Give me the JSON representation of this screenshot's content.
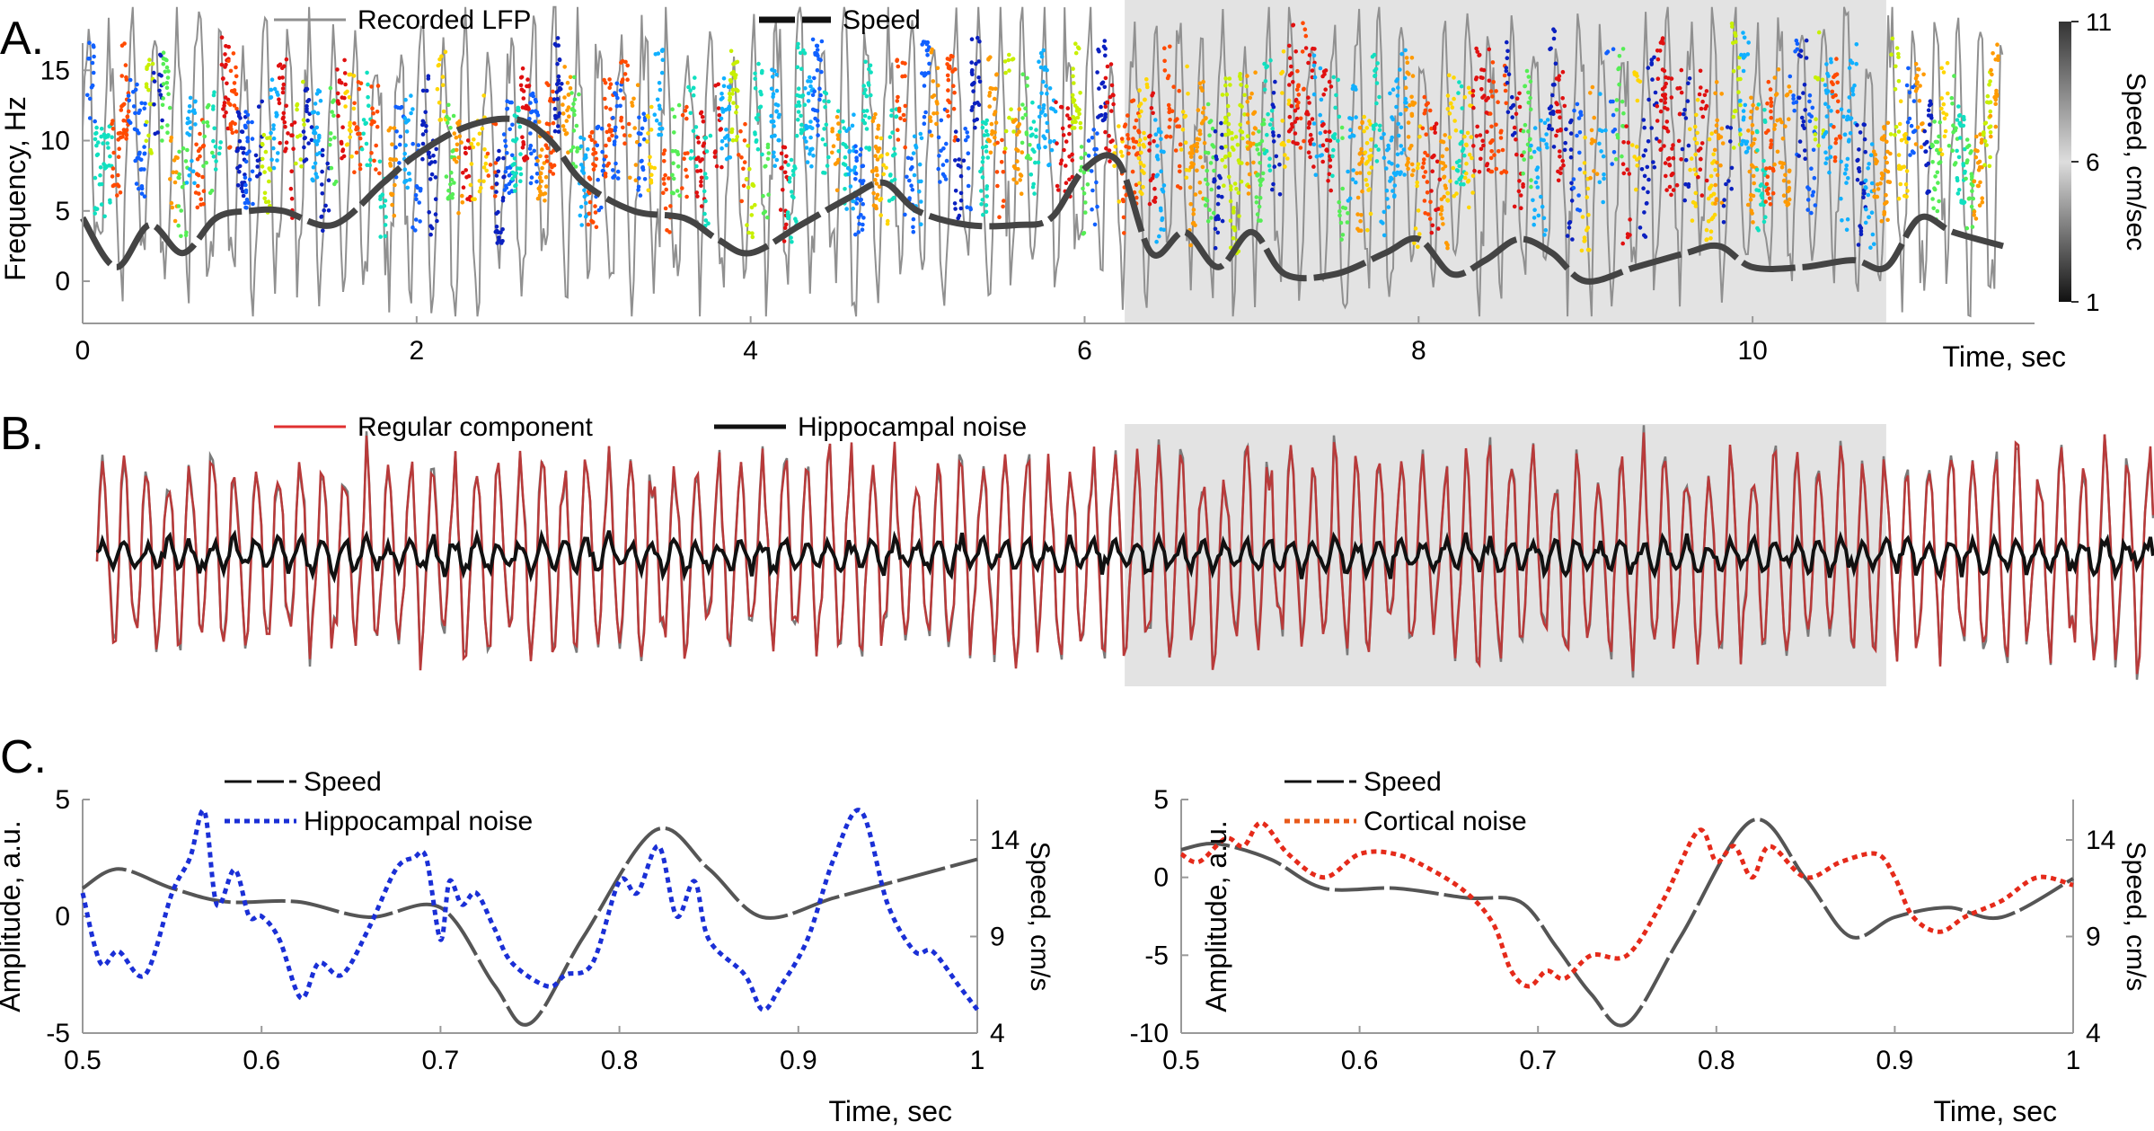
{
  "panel_labels": {
    "a": "A.",
    "b": "B.",
    "c": "C."
  },
  "chart_data": [
    {
      "panel": "A",
      "type": "line",
      "legend": [
        "Recorded LFP",
        "Speed"
      ],
      "ylabel": "Frequency, Hz",
      "xlabel": "Time, sec",
      "xlim": [
        0,
        11.5
      ],
      "ylim": [
        -3,
        20
      ],
      "xticks": [
        0,
        2,
        4,
        6,
        8,
        10
      ],
      "yticks": [
        0,
        5,
        10,
        15
      ],
      "colorbar": {
        "label": "Speed, cm/sec",
        "ticks": [
          1,
          6,
          11
        ]
      },
      "shaded_interval": [
        6.24,
        10.8
      ],
      "series": [
        {
          "name": "Speed",
          "x": [
            0,
            0.2,
            0.4,
            0.6,
            0.8,
            1.0,
            1.2,
            1.5,
            1.8,
            2.0,
            2.3,
            2.6,
            2.8,
            3.0,
            3.3,
            3.6,
            3.8,
            4.0,
            4.3,
            4.6,
            4.8,
            5.0,
            5.3,
            5.6,
            5.8,
            6.0,
            6.2,
            6.4,
            6.6,
            6.8,
            7.0,
            7.2,
            7.5,
            7.8,
            8.0,
            8.2,
            8.4,
            8.6,
            8.8,
            9.0,
            9.3,
            9.6,
            9.8,
            10.0,
            10.3,
            10.6,
            10.8,
            11.0,
            11.2,
            11.5
          ],
          "y": [
            4.5,
            1,
            4,
            2,
            4.5,
            5,
            5,
            4,
            7,
            9,
            11,
            11.5,
            10,
            7,
            5,
            4.5,
            3,
            2,
            4,
            6,
            7,
            5,
            4,
            4,
            4.5,
            8,
            8.5,
            2,
            3.5,
            1,
            3.5,
            0.5,
            0.5,
            2,
            3,
            0.5,
            1.5,
            3,
            2,
            0,
            1,
            2,
            2.5,
            1,
            1,
            1.5,
            1,
            4.5,
            3.5,
            2.5
          ]
        }
      ]
    },
    {
      "panel": "B",
      "type": "line",
      "legend": [
        "Regular component",
        "Hippocampal noise"
      ],
      "shaded_interval": [
        6.24,
        10.8
      ]
    },
    {
      "panel": "C-left",
      "type": "line",
      "legend": [
        "Speed",
        "Hippocampal noise"
      ],
      "ylabel": "Amplitude, a.u.",
      "ylabel_right": "Speed, cm/s",
      "xlabel": "Time, sec",
      "xlim": [
        0.5,
        1
      ],
      "ylim": [
        -5,
        5
      ],
      "xticks": [
        0.5,
        0.6,
        0.7,
        0.8,
        0.9,
        1
      ],
      "yticks": [
        -5,
        0,
        5
      ],
      "yticks_right": [
        4,
        9,
        14
      ],
      "series": [
        {
          "name": "Speed",
          "axis": "right",
          "x": [
            0.5,
            0.52,
            0.55,
            0.58,
            0.62,
            0.66,
            0.7,
            0.73,
            0.75,
            0.78,
            0.82,
            0.85,
            0.88,
            0.92,
            0.96,
            1.0
          ],
          "y": [
            11.5,
            12.5,
            11.5,
            10.8,
            10.8,
            10.0,
            10.5,
            6.5,
            4.5,
            9,
            14.5,
            12.5,
            10,
            11,
            12,
            13
          ]
        },
        {
          "name": "Hippocampal noise",
          "axis": "left",
          "x": [
            0.5,
            0.51,
            0.52,
            0.535,
            0.55,
            0.56,
            0.568,
            0.575,
            0.585,
            0.593,
            0.6,
            0.61,
            0.622,
            0.632,
            0.645,
            0.66,
            0.675,
            0.685,
            0.692,
            0.7,
            0.705,
            0.712,
            0.72,
            0.73,
            0.74,
            0.76,
            0.77,
            0.785,
            0.8,
            0.81,
            0.822,
            0.832,
            0.842,
            0.85,
            0.87,
            0.88,
            0.89,
            0.905,
            0.92,
            0.935,
            0.95,
            0.965,
            0.975,
            0.99,
            1.0
          ],
          "y": [
            1,
            -2,
            -1.5,
            -2.5,
            1,
            2.5,
            4.5,
            0.5,
            2,
            0,
            0,
            -1,
            -3.5,
            -2,
            -2.5,
            -0.5,
            2,
            2.5,
            2.5,
            -1,
            1.5,
            0.5,
            1,
            -0.5,
            -2,
            -3,
            -2.5,
            -2,
            1.5,
            1,
            3,
            0,
            1.5,
            -1,
            -2.5,
            -4,
            -3,
            -1,
            2.5,
            4.5,
            0.5,
            -1.5,
            -1.5,
            -3,
            -4
          ]
        }
      ]
    },
    {
      "panel": "C-right",
      "type": "line",
      "legend": [
        "Speed",
        "Cortical noise"
      ],
      "ylabel": "Amplitude, a.u.",
      "ylabel_right": "Speed, cm/s",
      "xlabel": "Time, sec",
      "xlim": [
        0.5,
        1
      ],
      "ylim": [
        -10,
        5
      ],
      "xticks": [
        0.5,
        0.6,
        0.7,
        0.8,
        0.9,
        1
      ],
      "yticks": [
        -10,
        -5,
        0,
        5
      ],
      "yticks_right": [
        4,
        9,
        14
      ],
      "series": [
        {
          "name": "Speed",
          "axis": "right",
          "x": [
            0.5,
            0.52,
            0.55,
            0.58,
            0.62,
            0.66,
            0.69,
            0.71,
            0.73,
            0.75,
            0.78,
            0.82,
            0.85,
            0.875,
            0.9,
            0.93,
            0.96,
            1.0
          ],
          "y": [
            13.5,
            13.8,
            13,
            11.5,
            11.5,
            11,
            10.8,
            8.5,
            6,
            4.5,
            9,
            15,
            12,
            9,
            10,
            10.5,
            10,
            12
          ]
        },
        {
          "name": "Cortical noise",
          "axis": "left",
          "x": [
            0.5,
            0.51,
            0.525,
            0.535,
            0.545,
            0.56,
            0.58,
            0.6,
            0.62,
            0.64,
            0.66,
            0.675,
            0.685,
            0.695,
            0.705,
            0.715,
            0.73,
            0.75,
            0.77,
            0.79,
            0.8,
            0.81,
            0.82,
            0.83,
            0.85,
            0.87,
            0.89,
            0.9,
            0.91,
            0.925,
            0.94,
            0.96,
            0.98,
            1.0
          ],
          "y": [
            1.5,
            1,
            2.5,
            2,
            3.5,
            1.5,
            0,
            1.5,
            1.5,
            0.5,
            -1,
            -3,
            -6,
            -7,
            -6,
            -6.5,
            -5,
            -5,
            -1.5,
            3,
            1,
            2,
            0,
            2,
            0,
            1,
            1.5,
            0,
            -2.5,
            -3.5,
            -2.5,
            -1.5,
            0,
            -0.5
          ]
        }
      ]
    }
  ]
}
